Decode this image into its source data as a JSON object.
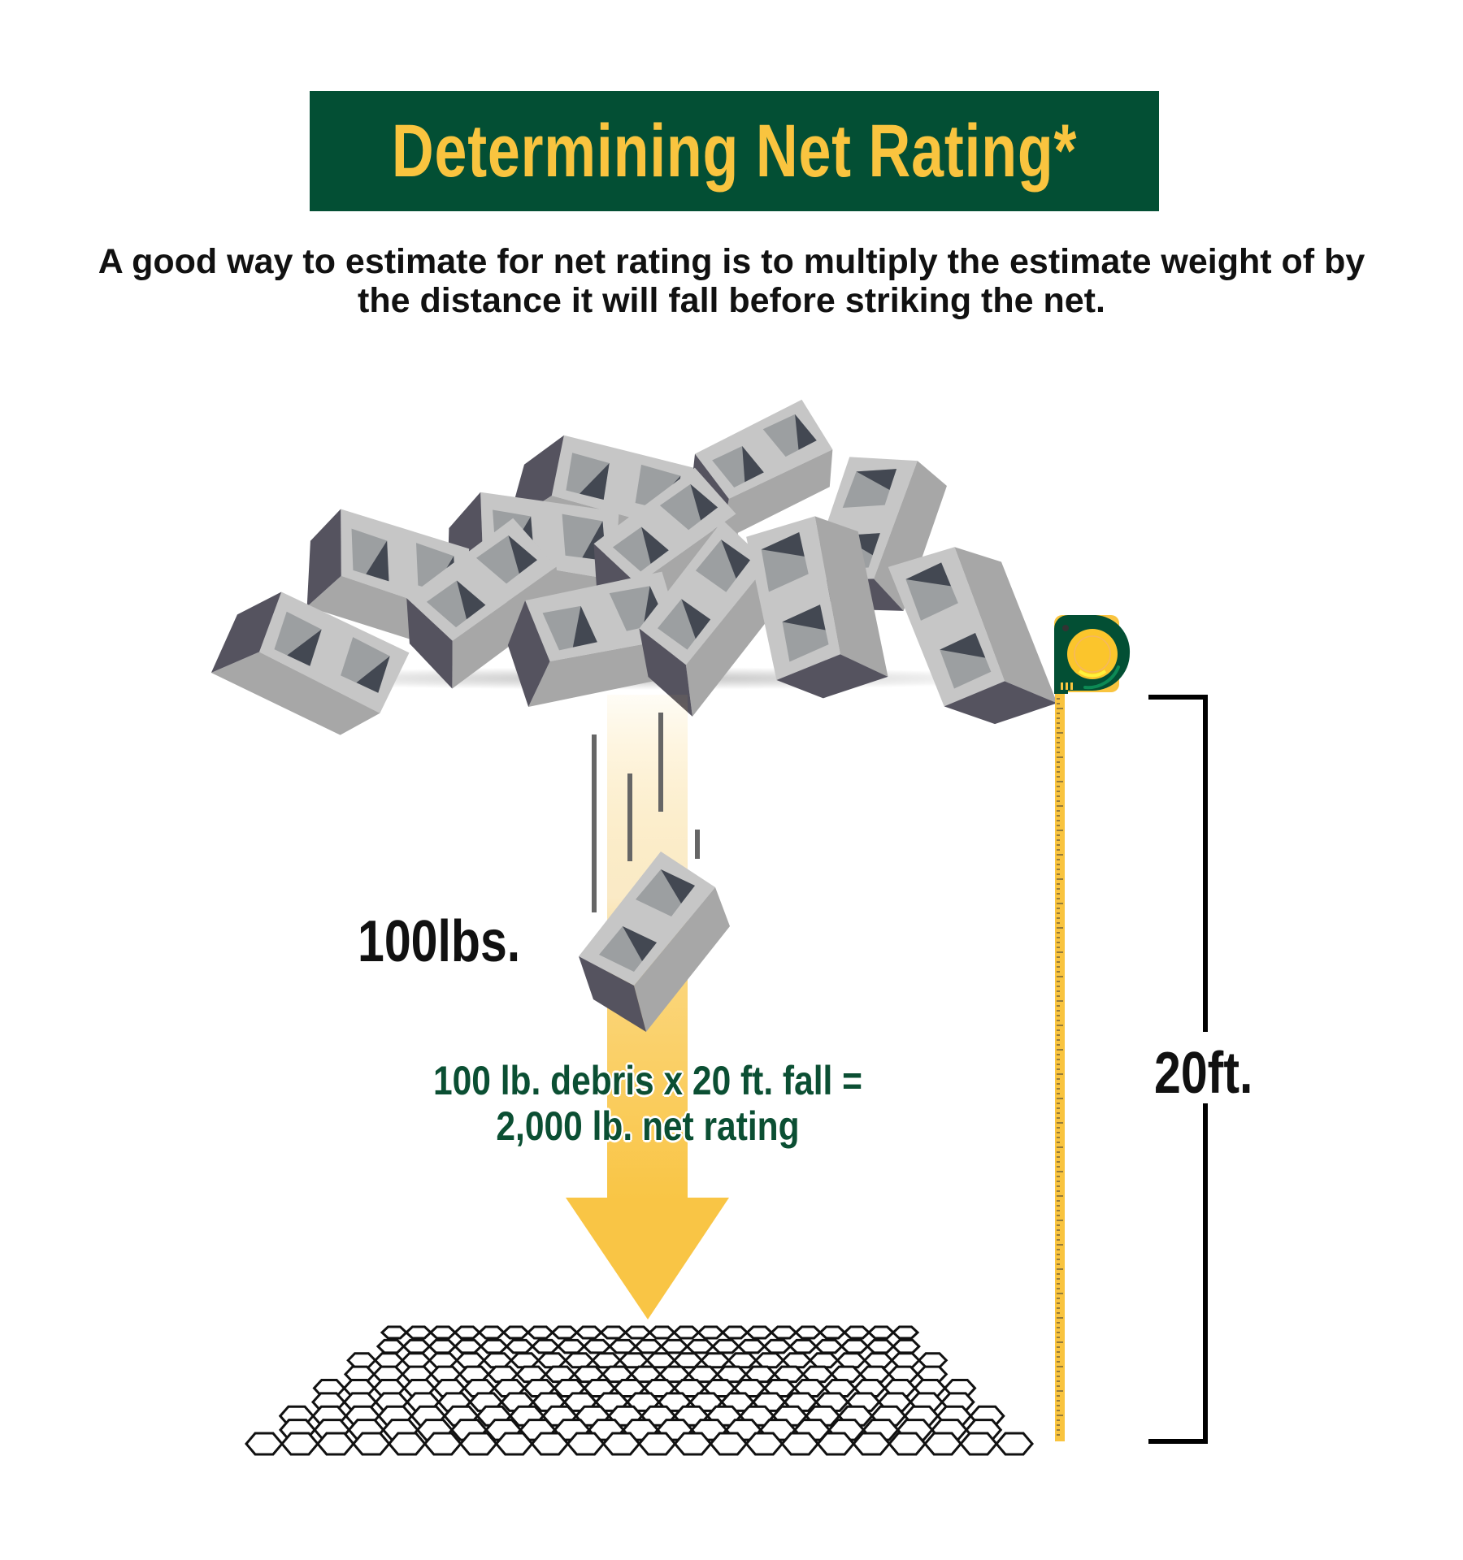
{
  "header": {
    "title": "Determining Net Rating*"
  },
  "intro": {
    "text": "A good way to estimate for net rating is to multiply the estimate weight of by the distance it will fall before striking the net."
  },
  "illustration": {
    "weight_label": "100lbs.",
    "height_label": "20ft.",
    "formula_line1": "100 lb. debris x 20 ft. fall =",
    "formula_line2": "2,000 lb. net rating",
    "icons": [
      "cinder-block-pile-icon",
      "falling-cinder-block-icon",
      "down-arrow-icon",
      "safety-net-icon",
      "tape-measure-icon",
      "height-bracket"
    ]
  },
  "colors": {
    "brand_green": "#034f34",
    "accent_yellow": "#f9c43f",
    "formula_green": "#0b4f33"
  }
}
